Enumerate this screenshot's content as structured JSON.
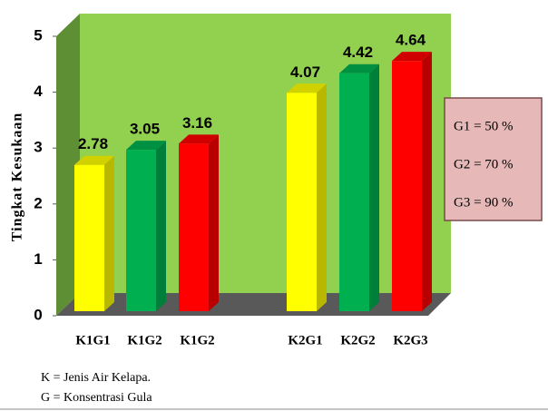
{
  "chart_data": {
    "type": "bar",
    "categories": [
      "K1G1",
      "K1G2",
      "K1G2",
      "K2G1",
      "K2G2",
      "K2G3"
    ],
    "values": [
      2.78,
      3.05,
      3.16,
      4.07,
      4.42,
      4.64
    ],
    "colors": [
      "#ffff00",
      "#00b050",
      "#ff0000",
      "#ffff00",
      "#00b050",
      "#ff0000"
    ],
    "ylabel": "Tingkat Kesukaan",
    "ylim": [
      0,
      5
    ],
    "yticks": [
      0,
      1,
      2,
      3,
      4,
      5
    ],
    "legend_box": [
      "G1 = 50 %",
      "G2 = 70 %",
      "G3 = 90 %"
    ],
    "notes": [
      "K = Jenis Air Kelapa.",
      "G = Konsentrasi Gula"
    ]
  }
}
